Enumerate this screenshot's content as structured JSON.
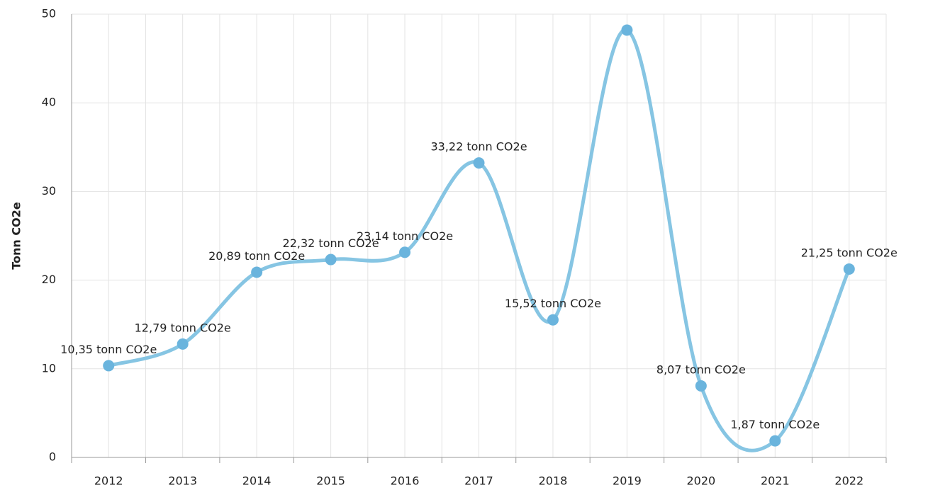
{
  "chart_data": {
    "type": "line",
    "ylabel": "Tonn CO2e",
    "categories": [
      "2012",
      "2013",
      "2014",
      "2015",
      "2016",
      "2017",
      "2018",
      "2019",
      "2020",
      "2021",
      "2022"
    ],
    "values": [
      10.35,
      12.79,
      20.89,
      22.32,
      23.14,
      33.22,
      15.52,
      48.2,
      8.07,
      1.87,
      21.25
    ],
    "value_labels": [
      "10,35 tonn CO2e",
      "12,79 tonn CO2e",
      "20,89 tonn CO2e",
      "22,32 tonn CO2e",
      "23,14 tonn CO2e",
      "33,22 tonn CO2e",
      "15,52 tonn CO2e",
      null,
      "8,07 tonn CO2e",
      "1,87 tonn CO2e",
      "21,25 tonn CO2e"
    ],
    "color": "#86c5e3",
    "marker_color": "#6ab4dd",
    "ylim": [
      0,
      50
    ],
    "yticks": [
      0,
      10,
      20,
      30,
      40,
      50
    ],
    "grid": true,
    "smooth": true
  }
}
